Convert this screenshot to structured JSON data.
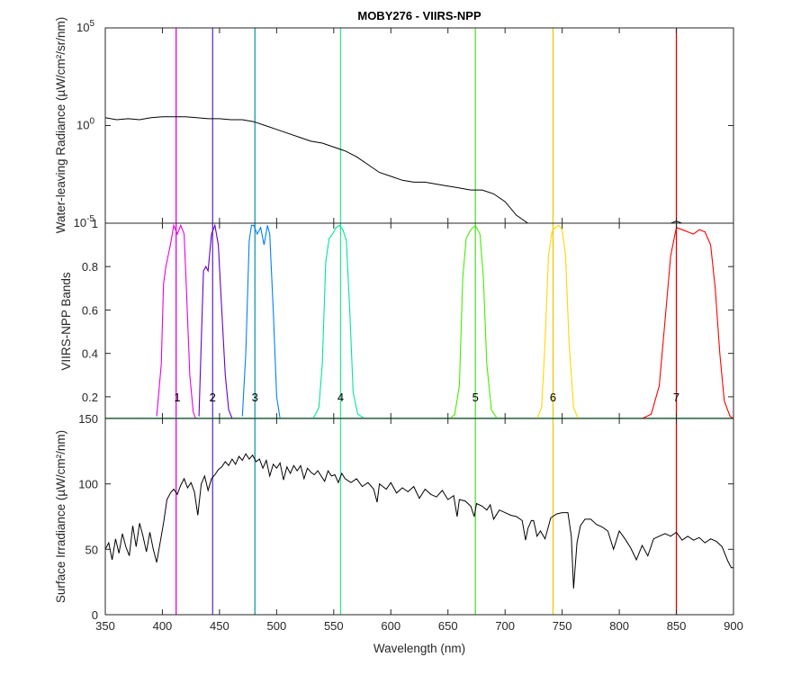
{
  "chart_data": [
    {
      "type": "line",
      "panel": "top",
      "title": "MOBY276 - VIIRS-NPP",
      "ylabel": "Water-leaving Radiance (µW/cm²/sr/nm)",
      "yscale": "log",
      "ylim_exponents": [
        -5,
        5
      ],
      "ytick_exponents": [
        -5,
        0,
        5
      ],
      "ytick_base": "10",
      "xlim": [
        350,
        900
      ],
      "show_x_tick_labels": false,
      "line_color": "#000000",
      "series": [
        {
          "values_log10": {
            "x": [
              350,
              360,
              370,
              380,
              390,
              400,
              410,
              420,
              430,
              440,
              450,
              460,
              470,
              480,
              490,
              500,
              510,
              520,
              530,
              540,
              550,
              560,
              570,
              580,
              590,
              600,
              610,
              620,
              630,
              640,
              650,
              660,
              670,
              680,
              690,
              700,
              710,
              720,
              730,
              740,
              742,
              750,
              760,
              770,
              780,
              790,
              800,
              810,
              820,
              830,
              840
            ],
            "y": [
              0.4,
              0.3,
              0.35,
              0.3,
              0.4,
              0.45,
              0.45,
              0.45,
              0.4,
              0.35,
              0.35,
              0.3,
              0.3,
              0.2,
              0.0,
              -0.2,
              -0.4,
              -0.6,
              -0.8,
              -0.9,
              -1.1,
              -1.3,
              -1.6,
              -2.0,
              -2.4,
              -2.6,
              -2.8,
              -2.9,
              -2.9,
              -3.0,
              -3.1,
              -3.2,
              -3.3,
              -3.3,
              -3.5,
              -3.9,
              -4.6,
              -5.2,
              -5.6,
              -5.8,
              -6.5,
              -5.9,
              -6.6,
              -5.7,
              -6.3,
              -5.8,
              -6.8,
              -5.5,
              -6.0,
              -5.6,
              -6.3
            ]
          },
          "gap_before_x": [
            840
          ]
        },
        {
          "values_log10": {
            "x": [
              845,
              850,
              855,
              860,
              865,
              870,
              875,
              880,
              885,
              890
            ],
            "y": [
              -6.2,
              -4.9,
              -6.4,
              -6.7,
              -5.5,
              -5.4,
              -6.3,
              -6.1,
              -5.6,
              -6.1
            ]
          }
        }
      ]
    },
    {
      "type": "line",
      "panel": "middle",
      "ylabel": "VIIRS-NPP Bands",
      "xlim": [
        350,
        900
      ],
      "ylim": [
        0.1,
        1.0
      ],
      "yticks": [
        0.2,
        0.4,
        0.6,
        0.8,
        1
      ],
      "ytick_labels": [
        "0.2",
        "0.4",
        "0.6",
        "0.8",
        "1"
      ],
      "show_x_tick_labels": false,
      "bands": [
        {
          "name": "1",
          "center": 412,
          "color": "#e600e6",
          "x": [
            395,
            399,
            401,
            403,
            405,
            407,
            410,
            413,
            416,
            419,
            421,
            424,
            427,
            429
          ],
          "y": [
            0.11,
            0.35,
            0.72,
            0.8,
            0.85,
            0.9,
            0.99,
            0.95,
            0.99,
            0.95,
            0.7,
            0.3,
            0.13,
            0.1
          ]
        },
        {
          "name": "2",
          "center": 445,
          "color": "#6600cc",
          "x": [
            432,
            434,
            436,
            438,
            440,
            443,
            446,
            449,
            452,
            455,
            458,
            461
          ],
          "y": [
            0.11,
            0.45,
            0.78,
            0.8,
            0.78,
            0.95,
            0.99,
            0.9,
            0.6,
            0.3,
            0.14,
            0.1
          ]
        },
        {
          "name": "3",
          "center": 480,
          "color": "#0080ff",
          "x": [
            470,
            473,
            476,
            478,
            480,
            483,
            486,
            489,
            492,
            494,
            497,
            500,
            503
          ],
          "y": [
            0.11,
            0.4,
            0.92,
            0.99,
            0.99,
            0.95,
            0.98,
            0.9,
            0.99,
            0.95,
            0.6,
            0.2,
            0.1
          ]
        },
        {
          "name": "4",
          "center": 555,
          "color": "#00e699",
          "x": [
            532,
            537,
            540,
            543,
            546,
            549,
            552,
            555,
            558,
            561,
            564,
            567,
            571,
            577
          ],
          "y": [
            0.1,
            0.15,
            0.35,
            0.82,
            0.93,
            0.95,
            0.98,
            0.99,
            0.97,
            0.92,
            0.6,
            0.22,
            0.12,
            0.1
          ]
        },
        {
          "name": "5",
          "center": 672,
          "color": "#44ee00",
          "x": [
            652,
            656,
            660,
            663,
            666,
            670,
            674,
            678,
            681,
            684,
            688,
            693
          ],
          "y": [
            0.1,
            0.12,
            0.25,
            0.75,
            0.93,
            0.97,
            0.99,
            0.95,
            0.75,
            0.35,
            0.14,
            0.1
          ]
        },
        {
          "name": "6",
          "center": 746,
          "color": "#ffd700",
          "x": [
            728,
            732,
            735,
            738,
            741,
            744,
            747,
            750,
            753,
            756,
            760,
            764
          ],
          "y": [
            0.1,
            0.15,
            0.45,
            0.85,
            0.96,
            0.98,
            0.99,
            0.97,
            0.85,
            0.45,
            0.15,
            0.1
          ]
        },
        {
          "name": "7",
          "center": 865,
          "color": "#ff0000",
          "x": [
            820,
            828,
            835,
            840,
            845,
            850,
            855,
            860,
            865,
            870,
            875,
            880,
            884,
            888,
            892,
            897,
            900
          ],
          "y": [
            0.1,
            0.12,
            0.25,
            0.55,
            0.85,
            0.98,
            0.97,
            0.96,
            0.95,
            0.97,
            0.96,
            0.9,
            0.7,
            0.4,
            0.18,
            0.11,
            0.1
          ]
        }
      ]
    },
    {
      "type": "line",
      "panel": "bottom",
      "ylabel": "Surface Irradiance (µW/cm²/nm)",
      "xlabel": "Wavelength (nm)",
      "xlim": [
        350,
        900
      ],
      "xticks": [
        350,
        400,
        450,
        500,
        550,
        600,
        650,
        700,
        750,
        800,
        850,
        900
      ],
      "xtick_labels": [
        "350",
        "400",
        "450",
        "500",
        "550",
        "600",
        "650",
        "700",
        "750",
        "800",
        "850",
        "900"
      ],
      "ylim": [
        0,
        150
      ],
      "yticks": [
        0,
        50,
        100,
        150
      ],
      "ytick_labels": [
        "0",
        "50",
        "100",
        "150"
      ],
      "line_color": "#000000",
      "values": {
        "x": [
          350,
          353,
          356,
          359,
          362,
          365,
          368,
          371,
          374,
          377,
          380,
          383,
          386,
          389,
          392,
          395,
          398,
          401,
          404,
          407,
          410,
          413,
          416,
          419,
          422,
          425,
          428,
          431,
          434,
          437,
          440,
          443,
          446,
          449,
          452,
          455,
          458,
          461,
          464,
          467,
          470,
          473,
          476,
          479,
          482,
          485,
          488,
          491,
          494,
          497,
          500,
          503,
          506,
          509,
          512,
          515,
          518,
          521,
          524,
          527,
          530,
          533,
          536,
          539,
          542,
          545,
          548,
          551,
          554,
          557,
          560,
          565,
          570,
          575,
          580,
          585,
          588,
          590,
          593,
          596,
          600,
          605,
          610,
          615,
          620,
          625,
          630,
          635,
          640,
          645,
          650,
          655,
          658,
          660,
          665,
          670,
          673,
          675,
          680,
          684,
          687,
          690,
          695,
          700,
          705,
          710,
          715,
          718,
          720,
          723,
          725,
          728,
          731,
          735,
          740,
          745,
          750,
          755,
          758,
          760,
          763,
          766,
          770,
          775,
          780,
          785,
          790,
          795,
          800,
          805,
          810,
          815,
          820,
          825,
          830,
          835,
          840,
          845,
          850,
          855,
          860,
          865,
          870,
          875,
          880,
          885,
          890,
          895,
          898,
          900
        ],
        "y": [
          50,
          55,
          42,
          58,
          47,
          62,
          52,
          45,
          68,
          52,
          70,
          60,
          48,
          63,
          50,
          40,
          55,
          70,
          88,
          93,
          96,
          92,
          99,
          104,
          97,
          101,
          94,
          76,
          100,
          106,
          95,
          104,
          107,
          111,
          113,
          117,
          114,
          119,
          115,
          121,
          118,
          123,
          119,
          122,
          117,
          119,
          112,
          118,
          106,
          115,
          112,
          116,
          103,
          113,
          108,
          114,
          110,
          114,
          104,
          112,
          109,
          107,
          110,
          106,
          102,
          110,
          106,
          107,
          101,
          108,
          104,
          101,
          104,
          98,
          101,
          96,
          86,
          100,
          98,
          96,
          101,
          93,
          97,
          94,
          98,
          89,
          96,
          92,
          90,
          95,
          88,
          91,
          75,
          88,
          87,
          83,
          75,
          85,
          83,
          80,
          84,
          73,
          80,
          78,
          76,
          75,
          72,
          57,
          66,
          72,
          72,
          60,
          64,
          58,
          74,
          77,
          78,
          78,
          60,
          20,
          55,
          68,
          73,
          73,
          69,
          67,
          64,
          50,
          64,
          58,
          51,
          42,
          53,
          45,
          58,
          60,
          62,
          60,
          63,
          57,
          60,
          57,
          59,
          55,
          58,
          56,
          52,
          41,
          36,
          36
        ]
      }
    }
  ],
  "vertical_markers": [
    {
      "wavelength": 412,
      "color": "#e600e6"
    },
    {
      "wavelength": 444,
      "color": "#6633cc"
    },
    {
      "wavelength": 481,
      "color": "#1a99a6"
    },
    {
      "wavelength": 556,
      "color": "#33e69a"
    },
    {
      "wavelength": 674,
      "color": "#55dd33"
    },
    {
      "wavelength": 742,
      "color": "#f0c800"
    },
    {
      "wavelength": 850,
      "color": "#e60000"
    }
  ],
  "band_labels": [
    {
      "text": "1",
      "x": 413
    },
    {
      "text": "2",
      "x": 444
    },
    {
      "text": "3",
      "x": 481
    },
    {
      "text": "4",
      "x": 556
    },
    {
      "text": "5",
      "x": 674
    },
    {
      "text": "6",
      "x": 742
    },
    {
      "text": "7",
      "x": 850
    }
  ],
  "band_label_y": 0.2
}
